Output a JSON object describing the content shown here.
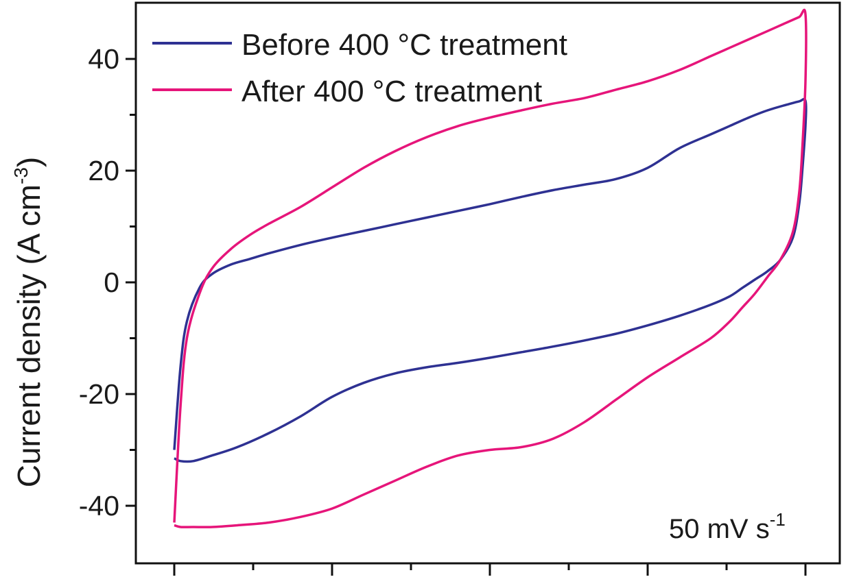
{
  "chart_data": {
    "type": "line",
    "xlabel": "",
    "ylabel": "Current density (A cm",
    "ylabel_sup": "-3",
    "ylim": [
      -50,
      50
    ],
    "y_ticks": [
      -40,
      -20,
      0,
      20,
      40
    ],
    "y_tick_labels": [
      "-40",
      "-20",
      "0",
      "20",
      "40"
    ],
    "y_minor_ticks": [
      -30,
      -10,
      10,
      30
    ],
    "x_tick_count_major": 5,
    "x_tick_count_minor": 4,
    "annotation": {
      "text": "50 mV s",
      "sup": "-1"
    },
    "legend": {
      "placement": "top-left"
    },
    "grid": false,
    "series": [
      {
        "name": "Before 400 °C treatment",
        "color": "#2e3192",
        "x": [
          0.0,
          0.01,
          0.02,
          0.04,
          0.06,
          0.09,
          0.12,
          0.15,
          0.2,
          0.25,
          0.3,
          0.35,
          0.4,
          0.45,
          0.5,
          0.55,
          0.6,
          0.65,
          0.7,
          0.75,
          0.8,
          0.85,
          0.88,
          0.91,
          0.94,
          0.97,
          0.99,
          1.0,
          1.0,
          0.995,
          0.99,
          0.98,
          0.96,
          0.94,
          0.92,
          0.9,
          0.88,
          0.85,
          0.8,
          0.75,
          0.7,
          0.65,
          0.6,
          0.55,
          0.5,
          0.45,
          0.4,
          0.35,
          0.3,
          0.25,
          0.2,
          0.15,
          0.1,
          0.06,
          0.03,
          0.01,
          0.0
        ],
        "y": [
          -30.0,
          -15.0,
          -7.0,
          -1.0,
          1.5,
          3.2,
          4.2,
          5.2,
          6.7,
          8.0,
          9.2,
          10.4,
          11.6,
          12.8,
          14.0,
          15.3,
          16.5,
          17.5,
          18.5,
          20.5,
          24.0,
          26.5,
          28.0,
          29.5,
          30.8,
          31.8,
          32.4,
          32.5,
          28.0,
          20.0,
          14.0,
          8.0,
          4.0,
          2.0,
          0.5,
          -1.0,
          -2.5,
          -4.0,
          -6.0,
          -7.7,
          -9.2,
          -10.4,
          -11.5,
          -12.5,
          -13.5,
          -14.4,
          -15.2,
          -16.3,
          -18.0,
          -20.5,
          -24.0,
          -27.0,
          -29.5,
          -31.0,
          -32.0,
          -32.0,
          -31.5
        ]
      },
      {
        "name": "After 400 °C treatment",
        "color": "#e6157a",
        "x": [
          0.0,
          0.01,
          0.02,
          0.04,
          0.06,
          0.09,
          0.12,
          0.15,
          0.2,
          0.25,
          0.3,
          0.35,
          0.4,
          0.45,
          0.5,
          0.55,
          0.6,
          0.65,
          0.7,
          0.75,
          0.8,
          0.85,
          0.88,
          0.91,
          0.94,
          0.97,
          0.99,
          1.0,
          1.0,
          0.995,
          0.99,
          0.98,
          0.96,
          0.94,
          0.92,
          0.9,
          0.88,
          0.85,
          0.8,
          0.75,
          0.7,
          0.65,
          0.6,
          0.55,
          0.5,
          0.45,
          0.4,
          0.35,
          0.3,
          0.25,
          0.2,
          0.15,
          0.1,
          0.06,
          0.03,
          0.01,
          0.0
        ],
        "y": [
          -43.0,
          -22.0,
          -10.0,
          -2.0,
          2.5,
          6.0,
          8.5,
          10.5,
          13.5,
          17.0,
          20.5,
          23.5,
          26.0,
          28.0,
          29.5,
          30.8,
          32.0,
          33.0,
          34.5,
          36.0,
          38.0,
          40.5,
          42.0,
          43.5,
          45.0,
          46.5,
          47.5,
          48.0,
          36.0,
          24.0,
          16.0,
          9.0,
          4.0,
          1.0,
          -2.0,
          -4.5,
          -7.0,
          -10.0,
          -13.5,
          -17.0,
          -21.0,
          -25.0,
          -28.0,
          -29.5,
          -30.0,
          -31.0,
          -33.0,
          -35.5,
          -38.0,
          -40.5,
          -42.0,
          -43.0,
          -43.5,
          -43.8,
          -43.8,
          -43.8,
          -43.5
        ]
      }
    ]
  }
}
